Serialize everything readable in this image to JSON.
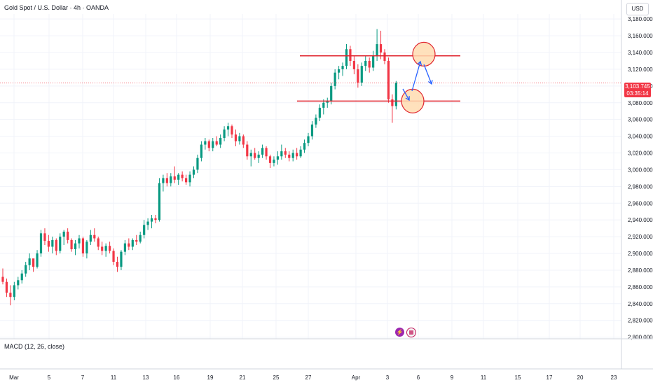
{
  "header": {
    "symbol_title": "Gold Spot / U.S. Dollar · 4h · OANDA",
    "currency_button": "USD"
  },
  "price_label": {
    "price": "3,103.745",
    "countdown": "03:35:14"
  },
  "indicator": {
    "label": "MACD (12, 26, close)"
  },
  "events": {
    "icon1": "lightning-icon",
    "icon2": "us-flag-icon"
  },
  "chart_data": {
    "type": "candlestick",
    "title": "Gold Spot / U.S. Dollar · 4h · OANDA",
    "y_axis": {
      "ticks": [
        2800,
        2820,
        2840,
        2860,
        2880,
        2900,
        2920,
        2940,
        2960,
        2980,
        3000,
        3020,
        3040,
        3060,
        3080,
        3100,
        3120,
        3140,
        3160,
        3180
      ],
      "tick_labels": [
        "2,800.000",
        "2,820.000",
        "2,840.000",
        "2,860.000",
        "2,880.000",
        "2,900.000",
        "2,920.000",
        "2,940.000",
        "2,960.000",
        "2,980.000",
        "3,000.000",
        "3,020.000",
        "3,040.000",
        "3,060.000",
        "3,080.000",
        "3,100.000",
        "3,120.000",
        "3,140.000",
        "3,160.000",
        "3,180.000"
      ],
      "range": [
        2800,
        3190
      ],
      "position": "right"
    },
    "x_axis": {
      "tick_labels": [
        "Mar",
        "5",
        "7",
        "11",
        "13",
        "16",
        "19",
        "21",
        "25",
        "27",
        "Apr",
        "3",
        "6",
        "9",
        "11",
        "15",
        "17",
        "20",
        "23"
      ]
    },
    "current_price": 3103.745,
    "colors": {
      "up": "#089981",
      "down": "#f23645",
      "annotation_line": "#e0252f",
      "arrow": "#2962ff",
      "circle_fill": "#ffdcb0",
      "circle_stroke": "#e0252f"
    },
    "candles": [
      [
        2872,
        2882,
        2863,
        2866
      ],
      [
        2866,
        2870,
        2848,
        2853
      ],
      [
        2853,
        2862,
        2838,
        2848
      ],
      [
        2848,
        2866,
        2844,
        2862
      ],
      [
        2862,
        2872,
        2857,
        2868
      ],
      [
        2868,
        2880,
        2864,
        2876
      ],
      [
        2876,
        2890,
        2872,
        2886
      ],
      [
        2886,
        2900,
        2880,
        2894
      ],
      [
        2894,
        2892,
        2878,
        2884
      ],
      [
        2884,
        2904,
        2882,
        2900
      ],
      [
        2900,
        2928,
        2896,
        2924
      ],
      [
        2924,
        2930,
        2910,
        2915
      ],
      [
        2915,
        2922,
        2902,
        2908
      ],
      [
        2908,
        2920,
        2900,
        2916
      ],
      [
        2916,
        2918,
        2898,
        2903
      ],
      [
        2903,
        2924,
        2900,
        2920
      ],
      [
        2920,
        2928,
        2910,
        2926
      ],
      [
        2926,
        2930,
        2912,
        2916
      ],
      [
        2916,
        2918,
        2902,
        2905
      ],
      [
        2905,
        2916,
        2898,
        2912
      ],
      [
        2912,
        2922,
        2906,
        2918
      ],
      [
        2918,
        2920,
        2896,
        2900
      ],
      [
        2900,
        2916,
        2894,
        2914
      ],
      [
        2914,
        2928,
        2910,
        2922
      ],
      [
        2922,
        2930,
        2914,
        2918
      ],
      [
        2918,
        2920,
        2904,
        2908
      ],
      [
        2908,
        2914,
        2898,
        2903
      ],
      [
        2903,
        2912,
        2896,
        2909
      ],
      [
        2909,
        2914,
        2900,
        2903
      ],
      [
        2903,
        2906,
        2886,
        2890
      ],
      [
        2890,
        2896,
        2878,
        2884
      ],
      [
        2884,
        2904,
        2880,
        2902
      ],
      [
        2902,
        2916,
        2898,
        2912
      ],
      [
        2912,
        2918,
        2904,
        2908
      ],
      [
        2908,
        2918,
        2904,
        2916
      ],
      [
        2916,
        2922,
        2910,
        2914
      ],
      [
        2914,
        2926,
        2912,
        2922
      ],
      [
        2922,
        2940,
        2918,
        2934
      ],
      [
        2934,
        2942,
        2928,
        2938
      ],
      [
        2938,
        2946,
        2930,
        2942
      ],
      [
        2942,
        2946,
        2936,
        2940
      ],
      [
        2940,
        2990,
        2938,
        2984
      ],
      [
        2984,
        2994,
        2974,
        2990
      ],
      [
        2990,
        2996,
        2980,
        2984
      ],
      [
        2984,
        2996,
        2980,
        2992
      ],
      [
        2992,
        3004,
        2984,
        2988
      ],
      [
        2988,
        2996,
        2982,
        2994
      ],
      [
        2994,
        2998,
        2986,
        2990
      ],
      [
        2990,
        2994,
        2982,
        2985
      ],
      [
        2985,
        2998,
        2980,
        2994
      ],
      [
        2994,
        3004,
        2990,
        3000
      ],
      [
        3000,
        3018,
        2996,
        3014
      ],
      [
        3014,
        3034,
        3010,
        3030
      ],
      [
        3030,
        3038,
        3024,
        3034
      ],
      [
        3034,
        3036,
        3022,
        3026
      ],
      [
        3026,
        3038,
        3022,
        3034
      ],
      [
        3034,
        3040,
        3028,
        3030
      ],
      [
        3030,
        3042,
        3026,
        3038
      ],
      [
        3038,
        3052,
        3034,
        3048
      ],
      [
        3048,
        3056,
        3040,
        3052
      ],
      [
        3052,
        3054,
        3038,
        3042
      ],
      [
        3042,
        3048,
        3028,
        3034
      ],
      [
        3034,
        3044,
        3030,
        3040
      ],
      [
        3040,
        3042,
        3026,
        3030
      ],
      [
        3030,
        3034,
        3012,
        3016
      ],
      [
        3016,
        3024,
        3004,
        3020
      ],
      [
        3020,
        3026,
        3012,
        3014
      ],
      [
        3014,
        3022,
        3008,
        3018
      ],
      [
        3018,
        3030,
        3014,
        3026
      ],
      [
        3026,
        3028,
        3012,
        3016
      ],
      [
        3016,
        3018,
        3002,
        3008
      ],
      [
        3008,
        3016,
        3004,
        3012
      ],
      [
        3012,
        3022,
        3006,
        3016
      ],
      [
        3016,
        3030,
        3012,
        3022
      ],
      [
        3022,
        3026,
        3014,
        3018
      ],
      [
        3018,
        3022,
        3010,
        3014
      ],
      [
        3014,
        3024,
        3010,
        3020
      ],
      [
        3020,
        3026,
        3012,
        3016
      ],
      [
        3016,
        3028,
        3014,
        3024
      ],
      [
        3024,
        3036,
        3020,
        3032
      ],
      [
        3032,
        3044,
        3028,
        3040
      ],
      [
        3040,
        3058,
        3036,
        3054
      ],
      [
        3054,
        3066,
        3050,
        3062
      ],
      [
        3062,
        3078,
        3058,
        3074
      ],
      [
        3074,
        3084,
        3066,
        3080
      ],
      [
        3080,
        3086,
        3074,
        3082
      ],
      [
        3082,
        3104,
        3078,
        3100
      ],
      [
        3100,
        3120,
        3096,
        3116
      ],
      [
        3116,
        3124,
        3108,
        3120
      ],
      [
        3120,
        3128,
        3112,
        3124
      ],
      [
        3124,
        3150,
        3120,
        3144
      ],
      [
        3144,
        3148,
        3124,
        3130
      ],
      [
        3130,
        3136,
        3114,
        3120
      ],
      [
        3120,
        3126,
        3098,
        3104
      ],
      [
        3104,
        3128,
        3100,
        3124
      ],
      [
        3124,
        3136,
        3118,
        3130
      ],
      [
        3130,
        3134,
        3116,
        3122
      ],
      [
        3122,
        3142,
        3118,
        3136
      ],
      [
        3136,
        3168,
        3130,
        3150
      ],
      [
        3150,
        3166,
        3132,
        3140
      ],
      [
        3140,
        3144,
        3126,
        3130
      ],
      [
        3130,
        3134,
        3080,
        3084
      ],
      [
        3084,
        3090,
        3056,
        3076
      ],
      [
        3076,
        3106,
        3072,
        3104
      ]
    ],
    "annotations": {
      "resistance_line": 3136,
      "support_line": 3082,
      "resistance_circle_center": 3138,
      "support_circle_center": 3082
    },
    "grid": true,
    "legend": "none"
  }
}
